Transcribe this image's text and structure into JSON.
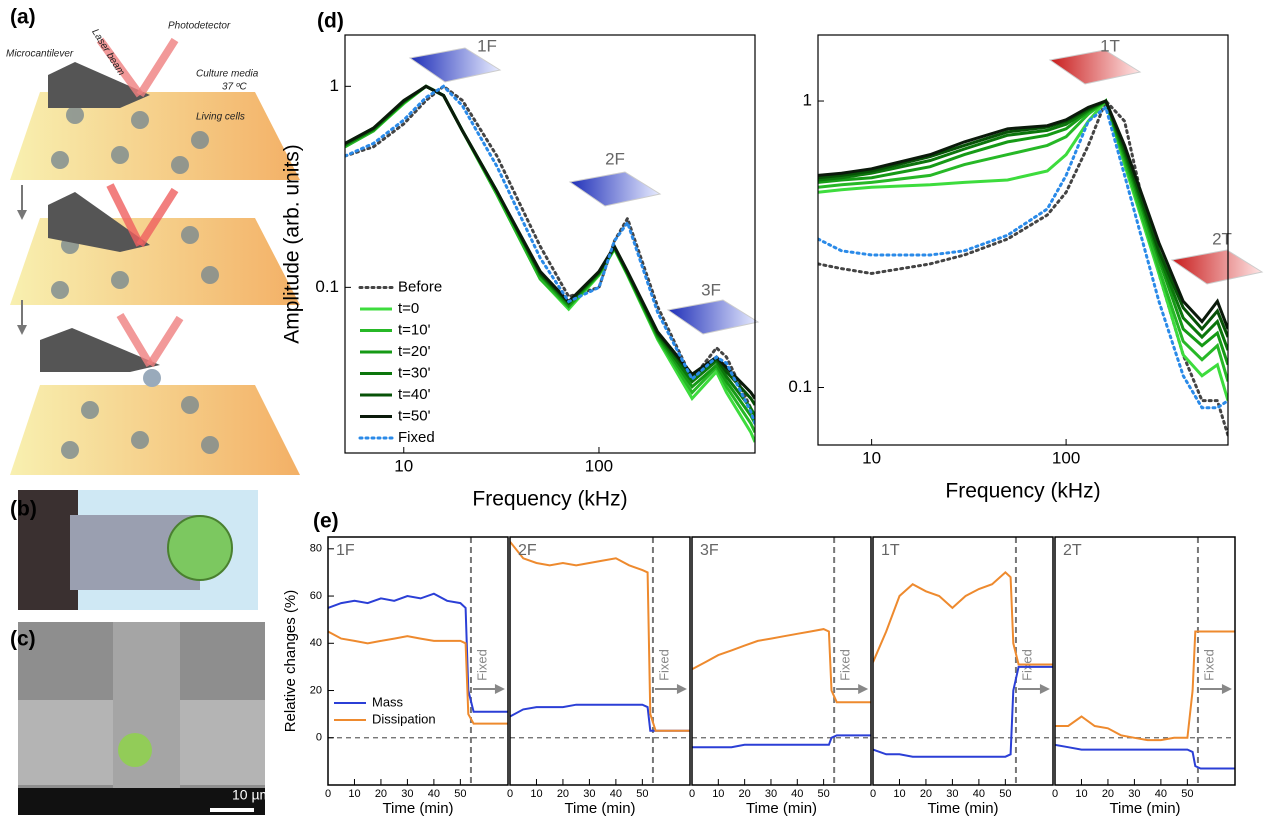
{
  "panel_labels": [
    "(a)",
    "(b)",
    "(c)",
    "(d)",
    "(e)"
  ],
  "schematic": {
    "labels": [
      "Microcantilever",
      "Laser beam",
      "Photodetector",
      "Culture media",
      "37 ºC",
      "Living cells"
    ]
  },
  "scale_bar": "10 µm",
  "chart_data": [
    {
      "type": "line",
      "xlabel": "Frequency (kHz)",
      "ylabel": "Amplitude (arb. units)",
      "xlog": true,
      "ylog": true,
      "xlim": [
        5,
        630
      ],
      "ylim": [
        0.015,
        1.8
      ],
      "xticks": [
        10,
        100
      ],
      "yticks": [
        0.1,
        1
      ],
      "legend": "lower left",
      "annotations": [
        "1F",
        "2F",
        "3F"
      ],
      "x": [
        5,
        7,
        10,
        13,
        16,
        20,
        30,
        50,
        70,
        100,
        120,
        140,
        200,
        300,
        400,
        450,
        600,
        630
      ],
      "series": [
        {
          "name": "Before",
          "color": "#444444",
          "style": "dotted",
          "values": [
            0.45,
            0.5,
            0.65,
            0.85,
            1.0,
            0.85,
            0.45,
            0.16,
            0.09,
            0.1,
            0.17,
            0.22,
            0.08,
            0.035,
            0.05,
            0.045,
            0.025,
            0.022
          ]
        },
        {
          "name": "t=0",
          "color": "#3ddc3d",
          "style": "solid",
          "values": [
            0.5,
            0.6,
            0.82,
            1.0,
            0.9,
            0.6,
            0.29,
            0.11,
            0.078,
            0.115,
            0.155,
            0.115,
            0.055,
            0.028,
            0.038,
            0.03,
            0.019,
            0.017
          ]
        },
        {
          "name": "t=10'",
          "color": "#27b827",
          "style": "solid",
          "values": [
            0.5,
            0.6,
            0.83,
            1.0,
            0.9,
            0.6,
            0.29,
            0.11,
            0.08,
            0.116,
            0.156,
            0.116,
            0.056,
            0.03,
            0.04,
            0.032,
            0.021,
            0.019
          ]
        },
        {
          "name": "t=20'",
          "color": "#169a16",
          "style": "solid",
          "values": [
            0.51,
            0.61,
            0.83,
            1.0,
            0.9,
            0.6,
            0.3,
            0.115,
            0.081,
            0.117,
            0.157,
            0.117,
            0.057,
            0.032,
            0.041,
            0.034,
            0.023,
            0.021
          ]
        },
        {
          "name": "t=30'",
          "color": "#0c760c",
          "style": "solid",
          "values": [
            0.51,
            0.61,
            0.84,
            1.0,
            0.9,
            0.6,
            0.3,
            0.116,
            0.083,
            0.118,
            0.158,
            0.118,
            0.058,
            0.034,
            0.043,
            0.036,
            0.025,
            0.023
          ]
        },
        {
          "name": "t=40'",
          "color": "#075207",
          "style": "solid",
          "values": [
            0.52,
            0.62,
            0.84,
            1.0,
            0.9,
            0.6,
            0.3,
            0.118,
            0.084,
            0.119,
            0.159,
            0.119,
            0.059,
            0.036,
            0.044,
            0.038,
            0.028,
            0.026
          ]
        },
        {
          "name": "t=50'",
          "color": "#0b1a0b",
          "style": "solid",
          "values": [
            0.52,
            0.62,
            0.85,
            1.0,
            0.9,
            0.6,
            0.3,
            0.12,
            0.085,
            0.12,
            0.16,
            0.12,
            0.06,
            0.037,
            0.045,
            0.04,
            0.03,
            0.028
          ]
        },
        {
          "name": "Fixed",
          "color": "#2a8ae8",
          "style": "dotted",
          "values": [
            0.45,
            0.52,
            0.68,
            0.88,
            1.0,
            0.8,
            0.4,
            0.14,
            0.085,
            0.1,
            0.17,
            0.21,
            0.075,
            0.035,
            0.045,
            0.042,
            0.024,
            0.021
          ]
        }
      ]
    },
    {
      "type": "line",
      "xlabel": "Frequency (kHz)",
      "xlog": true,
      "ylog": true,
      "xlim": [
        5.3,
        680
      ],
      "ylim": [
        0.063,
        1.7
      ],
      "xticks": [
        10,
        100
      ],
      "yticks": [
        0.1,
        1
      ],
      "annotations": [
        "1T",
        "2T"
      ],
      "x": [
        5.3,
        7,
        10,
        20,
        30,
        50,
        80,
        100,
        130,
        160,
        200,
        300,
        400,
        500,
        600,
        680
      ],
      "series": [
        {
          "color": "#444444",
          "style": "dotted",
          "values": [
            0.27,
            0.26,
            0.25,
            0.27,
            0.29,
            0.33,
            0.4,
            0.48,
            0.7,
            1.0,
            0.85,
            0.25,
            0.13,
            0.09,
            0.09,
            0.068
          ]
        },
        {
          "color": "#3ddc3d",
          "style": "solid",
          "values": [
            0.48,
            0.49,
            0.5,
            0.51,
            0.52,
            0.53,
            0.57,
            0.65,
            0.85,
            1.0,
            0.6,
            0.25,
            0.13,
            0.11,
            0.12,
            0.09
          ]
        },
        {
          "color": "#27b827",
          "style": "solid",
          "values": [
            0.5,
            0.51,
            0.52,
            0.55,
            0.6,
            0.65,
            0.7,
            0.75,
            0.9,
            1.0,
            0.62,
            0.26,
            0.145,
            0.125,
            0.14,
            0.105
          ]
        },
        {
          "color": "#169a16",
          "style": "solid",
          "values": [
            0.52,
            0.53,
            0.54,
            0.59,
            0.65,
            0.72,
            0.76,
            0.8,
            0.92,
            1.0,
            0.64,
            0.28,
            0.16,
            0.14,
            0.155,
            0.12
          ]
        },
        {
          "color": "#0c760c",
          "style": "solid",
          "values": [
            0.53,
            0.54,
            0.56,
            0.62,
            0.68,
            0.76,
            0.79,
            0.83,
            0.93,
            1.0,
            0.66,
            0.29,
            0.175,
            0.15,
            0.17,
            0.135
          ]
        },
        {
          "color": "#075207",
          "style": "solid",
          "values": [
            0.54,
            0.55,
            0.57,
            0.64,
            0.7,
            0.78,
            0.81,
            0.85,
            0.94,
            1.0,
            0.68,
            0.3,
            0.19,
            0.16,
            0.185,
            0.15
          ]
        },
        {
          "color": "#0b1a0b",
          "style": "solid",
          "values": [
            0.55,
            0.56,
            0.58,
            0.65,
            0.72,
            0.8,
            0.82,
            0.86,
            0.95,
            1.0,
            0.7,
            0.32,
            0.2,
            0.17,
            0.2,
            0.16
          ]
        },
        {
          "color": "#2a8ae8",
          "style": "dotted",
          "values": [
            0.33,
            0.3,
            0.29,
            0.29,
            0.3,
            0.34,
            0.42,
            0.55,
            0.85,
            0.95,
            0.55,
            0.2,
            0.11,
            0.085,
            0.085,
            0.09
          ]
        }
      ]
    },
    {
      "type": "line",
      "title": "1F",
      "xlabel": "Time (min)",
      "ylabel": "Relative changes (%)",
      "annotation": "Fixed",
      "xlim": [
        0,
        68
      ],
      "ylim": [
        -20,
        85
      ],
      "xticks": [
        0,
        10,
        20,
        30,
        40,
        50
      ],
      "yticks": [
        0,
        20,
        40,
        60,
        80
      ],
      "vline": 54,
      "hline": 0,
      "legend": "lower left",
      "x": [
        0,
        5,
        10,
        15,
        20,
        25,
        30,
        35,
        40,
        45,
        50,
        52,
        53,
        55,
        60,
        68
      ],
      "series": [
        {
          "name": "Mass",
          "color": "#2b3fd6",
          "style": "solid",
          "values": [
            55,
            57,
            58,
            57,
            59,
            58,
            60,
            59,
            61,
            58,
            57,
            55,
            20,
            11,
            11,
            11
          ]
        },
        {
          "name": "Dissipation",
          "color": "#ee8a2e",
          "style": "solid",
          "values": [
            45,
            42,
            41,
            40,
            41,
            42,
            43,
            42,
            41,
            41,
            41,
            40,
            10,
            6,
            6,
            6
          ]
        }
      ]
    },
    {
      "type": "line",
      "title": "2F",
      "xlabel": "Time (min)",
      "annotation": "Fixed",
      "xlim": [
        0,
        68
      ],
      "ylim": [
        -20,
        85
      ],
      "xticks": [
        0,
        10,
        20,
        30,
        40,
        50
      ],
      "vline": 54,
      "hline": 0,
      "x": [
        0,
        5,
        10,
        15,
        20,
        25,
        30,
        35,
        40,
        45,
        50,
        52,
        53,
        55,
        60,
        68
      ],
      "series": [
        {
          "color": "#2b3fd6",
          "style": "solid",
          "values": [
            9,
            12,
            13,
            13,
            13,
            14,
            14,
            14,
            14,
            14,
            14,
            13,
            3,
            3,
            3,
            3
          ]
        },
        {
          "color": "#ee8a2e",
          "style": "solid",
          "values": [
            83,
            76,
            74,
            73,
            74,
            73,
            74,
            75,
            76,
            73,
            71,
            70,
            10,
            3,
            3,
            3
          ]
        }
      ]
    },
    {
      "type": "line",
      "title": "3F",
      "xlabel": "Time (min)",
      "annotation": "Fixed",
      "xlim": [
        0,
        68
      ],
      "ylim": [
        -20,
        85
      ],
      "xticks": [
        0,
        10,
        20,
        30,
        40,
        50
      ],
      "vline": 54,
      "hline": 0,
      "x": [
        0,
        5,
        10,
        15,
        20,
        25,
        30,
        35,
        40,
        45,
        50,
        52,
        53,
        55,
        60,
        68
      ],
      "series": [
        {
          "color": "#2b3fd6",
          "style": "solid",
          "values": [
            -4,
            -4,
            -4,
            -4,
            -3,
            -3,
            -3,
            -3,
            -3,
            -3,
            -3,
            -3,
            0,
            1,
            1,
            1
          ]
        },
        {
          "color": "#ee8a2e",
          "style": "solid",
          "values": [
            29,
            32,
            35,
            37,
            39,
            41,
            42,
            43,
            44,
            45,
            46,
            45,
            20,
            15,
            15,
            15
          ]
        }
      ]
    },
    {
      "type": "line",
      "title": "1T",
      "xlabel": "Time (min)",
      "annotation": "Fixed",
      "xlim": [
        0,
        68
      ],
      "ylim": [
        -20,
        85
      ],
      "xticks": [
        0,
        10,
        20,
        30,
        40,
        50
      ],
      "vline": 54,
      "hline": 0,
      "x": [
        0,
        5,
        10,
        15,
        20,
        25,
        30,
        35,
        40,
        45,
        50,
        52,
        53,
        55,
        60,
        68
      ],
      "series": [
        {
          "color": "#2b3fd6",
          "style": "solid",
          "values": [
            -5,
            -7,
            -7,
            -8,
            -8,
            -8,
            -8,
            -8,
            -8,
            -8,
            -8,
            -7,
            20,
            30,
            30,
            30
          ]
        },
        {
          "color": "#ee8a2e",
          "style": "solid",
          "values": [
            32,
            45,
            60,
            65,
            62,
            60,
            55,
            60,
            63,
            65,
            70,
            68,
            40,
            31,
            31,
            31
          ]
        }
      ]
    },
    {
      "type": "line",
      "title": "2T",
      "xlabel": "Time (min)",
      "annotation": "Fixed",
      "xlim": [
        0,
        68
      ],
      "ylim": [
        -20,
        85
      ],
      "xticks": [
        0,
        10,
        20,
        30,
        40,
        50
      ],
      "vline": 54,
      "hline": 0,
      "x": [
        0,
        5,
        10,
        15,
        20,
        25,
        30,
        35,
        40,
        45,
        50,
        52,
        53,
        55,
        60,
        68
      ],
      "series": [
        {
          "color": "#2b3fd6",
          "style": "solid",
          "values": [
            -3,
            -4,
            -5,
            -5,
            -5,
            -5,
            -5,
            -5,
            -5,
            -5,
            -5,
            -6,
            -12,
            -13,
            -13,
            -13
          ]
        },
        {
          "color": "#ee8a2e",
          "style": "solid",
          "values": [
            5,
            5,
            9,
            5,
            4,
            1,
            0,
            -1,
            -1,
            0,
            0,
            20,
            45,
            45,
            45,
            45
          ]
        }
      ]
    }
  ]
}
